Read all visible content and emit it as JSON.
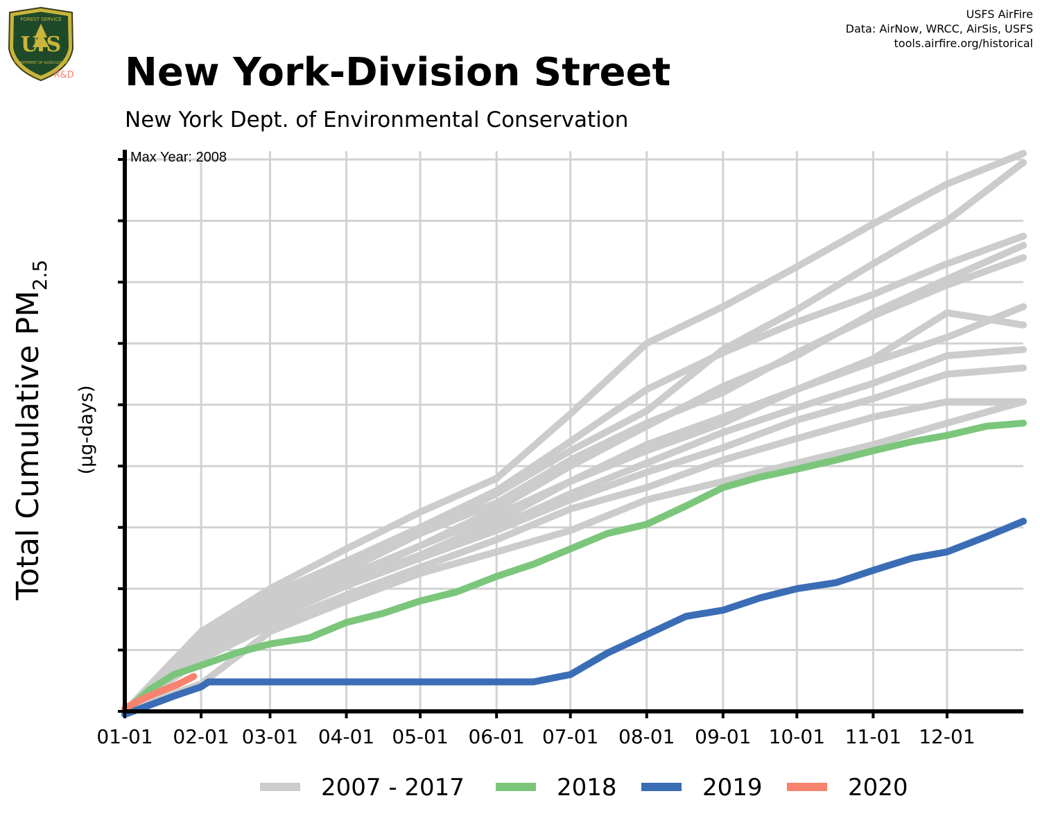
{
  "logo": {
    "text_top": "FOREST SERVICE",
    "text_letters": "U S",
    "text_bottom": "DEPARTMENT OF AGRICULTURE",
    "badge": "R&D"
  },
  "credits": {
    "line1": "USFS AirFire",
    "line2": "Data: AirNow, WRCC, AirSis, USFS",
    "line3": "tools.airfire.org/historical"
  },
  "header": {
    "title": "New York-Division Street",
    "subtitle": "New York Dept. of Environmental Conservation"
  },
  "colors": {
    "history": "#cccccc",
    "y2018": "#7bc67b",
    "y2019": "#3a6db5",
    "y2020": "#f7836e"
  },
  "chart_data": {
    "type": "line",
    "ylabel_main": "Total Cumulative PM",
    "ylabel_sub": "2.5",
    "ylabel_units": "(µg-days)",
    "annotation": "Max Year: 2008",
    "x_ticks": [
      "01-01",
      "02-01",
      "03-01",
      "04-01",
      "05-01",
      "06-01",
      "07-01",
      "08-01",
      "09-01",
      "10-01",
      "11-01",
      "12-01"
    ],
    "x_tick_days": [
      0,
      31,
      59,
      90,
      120,
      151,
      181,
      212,
      243,
      273,
      304,
      334
    ],
    "xlim": [
      0,
      365
    ],
    "ylim": [
      0,
      9
    ],
    "y_ticks": [
      0,
      1,
      2,
      3,
      4,
      5,
      6,
      7,
      8,
      9
    ],
    "y_tick_labels": "none",
    "grid": true,
    "legend": {
      "position": "bottom",
      "entries": [
        {
          "label": "2007 - 2017",
          "color": "#cccccc"
        },
        {
          "label": "2018",
          "color": "#7bc67b"
        },
        {
          "label": "2019",
          "color": "#3a6db5"
        },
        {
          "label": "2020",
          "color": "#f7836e"
        }
      ]
    },
    "series_2007_2017": [
      {
        "x": [
          0,
          31,
          59,
          90,
          120,
          151,
          181,
          212,
          243,
          273,
          304,
          334,
          365
        ],
        "y": [
          0,
          1.3,
          2.0,
          2.65,
          3.25,
          3.8,
          4.85,
          6.0,
          6.6,
          7.25,
          7.95,
          8.6,
          9.1
        ]
      },
      {
        "x": [
          0,
          31,
          59,
          90,
          120,
          151,
          181,
          212,
          243,
          273,
          304,
          334,
          365
        ],
        "y": [
          0,
          1.15,
          1.85,
          2.4,
          2.9,
          3.55,
          4.25,
          4.9,
          5.9,
          6.55,
          7.3,
          8.0,
          8.95
        ]
      },
      {
        "x": [
          0,
          31,
          59,
          90,
          120,
          151,
          181,
          212,
          243,
          273,
          304,
          334,
          365
        ],
        "y": [
          0,
          1.25,
          1.9,
          2.45,
          3.0,
          3.6,
          4.4,
          5.25,
          5.85,
          6.35,
          6.8,
          7.3,
          7.75
        ]
      },
      {
        "x": [
          0,
          31,
          59,
          90,
          120,
          151,
          181,
          212,
          243,
          273,
          304,
          334,
          365
        ],
        "y": [
          0,
          1.05,
          1.7,
          2.2,
          2.7,
          3.3,
          4.0,
          4.65,
          5.3,
          5.8,
          6.5,
          7.05,
          7.6
        ]
      },
      {
        "x": [
          0,
          31,
          59,
          90,
          120,
          151,
          181,
          212,
          243,
          273,
          304,
          334,
          365
        ],
        "y": [
          0,
          1.1,
          1.75,
          2.3,
          2.9,
          3.4,
          4.1,
          4.7,
          5.2,
          5.85,
          6.45,
          6.95,
          7.4
        ]
      },
      {
        "x": [
          0,
          31,
          59,
          90,
          120,
          151,
          181,
          212,
          243,
          273,
          304,
          334,
          365
        ],
        "y": [
          0,
          0.95,
          1.6,
          2.1,
          2.55,
          3.1,
          3.75,
          4.25,
          4.7,
          5.25,
          5.75,
          6.5,
          6.3
        ]
      },
      {
        "x": [
          0,
          31,
          59,
          90,
          120,
          151,
          181,
          212,
          243,
          273,
          304,
          334,
          365
        ],
        "y": [
          0,
          1.0,
          1.65,
          2.15,
          2.7,
          3.2,
          3.75,
          4.35,
          4.8,
          5.25,
          5.7,
          6.1,
          6.6
        ]
      },
      {
        "x": [
          0,
          31,
          59,
          90,
          120,
          151,
          181,
          212,
          243,
          273,
          304,
          334,
          365
        ],
        "y": [
          0,
          0.9,
          1.5,
          2.05,
          2.5,
          3.0,
          3.55,
          4.05,
          4.55,
          4.95,
          5.35,
          5.8,
          5.9
        ]
      },
      {
        "x": [
          0,
          31,
          59,
          90,
          120,
          151,
          181,
          212,
          243,
          273,
          304,
          334,
          365
        ],
        "y": [
          0,
          1.0,
          1.55,
          2.05,
          2.5,
          2.95,
          3.45,
          3.9,
          4.3,
          4.75,
          5.1,
          5.5,
          5.6
        ]
      },
      {
        "x": [
          0,
          31,
          59,
          90,
          120,
          151,
          181,
          212,
          243,
          273,
          304,
          334,
          365
        ],
        "y": [
          0,
          0.85,
          1.4,
          1.9,
          2.35,
          2.8,
          3.3,
          3.65,
          4.1,
          4.45,
          4.8,
          5.05,
          5.05
        ]
      },
      {
        "x": [
          0,
          31,
          59,
          90,
          120,
          151,
          181,
          212,
          243,
          273,
          304,
          334,
          365
        ],
        "y": [
          0,
          0.45,
          1.3,
          1.8,
          2.25,
          2.6,
          2.95,
          3.45,
          3.75,
          4.05,
          4.35,
          4.7,
          5.05
        ]
      }
    ],
    "series": [
      {
        "name": "2018",
        "color": "#7bc67b",
        "x": [
          0,
          10,
          20,
          31,
          45,
          59,
          75,
          90,
          105,
          120,
          135,
          151,
          166,
          181,
          196,
          212,
          228,
          243,
          258,
          273,
          289,
          304,
          320,
          334,
          350,
          365
        ],
        "y": [
          0,
          0.35,
          0.6,
          0.75,
          0.95,
          1.1,
          1.2,
          1.45,
          1.6,
          1.8,
          1.95,
          2.2,
          2.4,
          2.65,
          2.9,
          3.05,
          3.35,
          3.65,
          3.82,
          3.95,
          4.1,
          4.25,
          4.4,
          4.5,
          4.65,
          4.7
        ]
      },
      {
        "name": "2019",
        "color": "#3a6db5",
        "x": [
          0,
          10,
          20,
          31,
          34,
          60,
          90,
          120,
          150,
          166,
          181,
          196,
          212,
          228,
          243,
          258,
          273,
          289,
          304,
          320,
          334,
          350,
          365
        ],
        "y": [
          -0.05,
          0.1,
          0.25,
          0.4,
          0.48,
          0.48,
          0.48,
          0.48,
          0.48,
          0.48,
          0.6,
          0.95,
          1.25,
          1.55,
          1.65,
          1.85,
          2.0,
          2.1,
          2.3,
          2.5,
          2.6,
          2.85,
          3.1
        ]
      },
      {
        "name": "2020",
        "color": "#f7836e",
        "x": [
          0,
          7,
          14,
          21,
          28
        ],
        "y": [
          0.05,
          0.2,
          0.32,
          0.43,
          0.57
        ]
      }
    ]
  }
}
